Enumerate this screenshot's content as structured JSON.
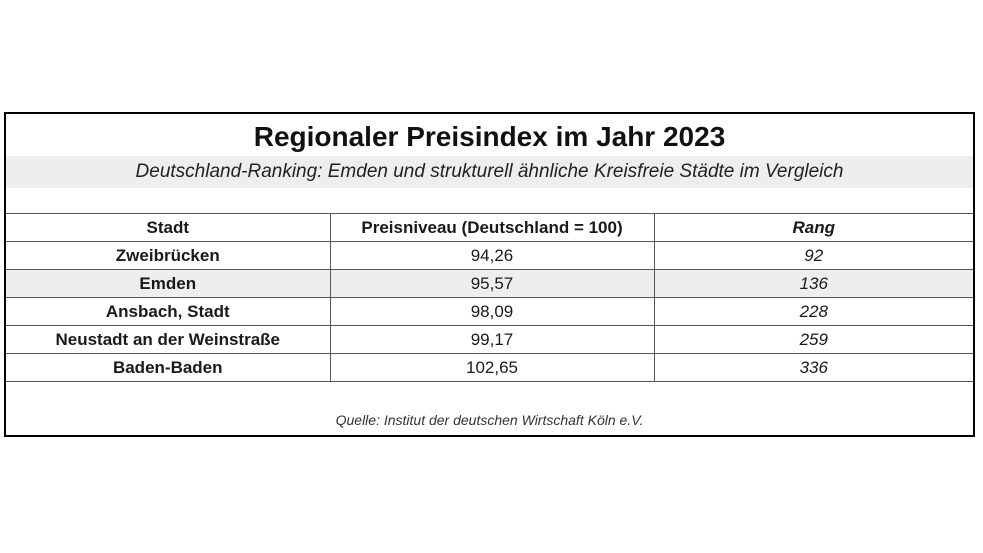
{
  "title": "Regionaler Preisindex im Jahr 2023",
  "subtitle": "Deutschland-Ranking: Emden und strukturell ähnliche Kreisfreie Städte im Vergleich",
  "table": {
    "headers": [
      "Stadt",
      "Preisniveau (Deutschland = 100)",
      "Rang"
    ],
    "rows": [
      {
        "stadt": "Zweibrücken",
        "preisniveau": "94,26",
        "rang": "92"
      },
      {
        "stadt": "Emden",
        "preisniveau": "95,57",
        "rang": "136"
      },
      {
        "stadt": "Ansbach, Stadt",
        "preisniveau": "98,09",
        "rang": "228"
      },
      {
        "stadt": "Neustadt an der Weinstraße",
        "preisniveau": "99,17",
        "rang": "259"
      },
      {
        "stadt": "Baden-Baden",
        "preisniveau": "102,65",
        "rang": "336"
      }
    ]
  },
  "source": "Quelle: Institut der deutschen Wirtschaft Köln e.V."
}
